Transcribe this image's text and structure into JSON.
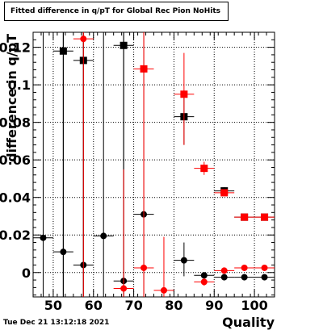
{
  "title": "Fitted difference in q/pT for Global Rec Pion NoHits",
  "timestamp": "Tue Dec 21 13:12:18 2021",
  "chart_data": {
    "type": "scatter",
    "title": "Fitted difference in q/pT for Global Rec Pion NoHits",
    "xlabel": "Quality",
    "ylabel": "difference in q/pT",
    "xlim": [
      45,
      105
    ],
    "ylim": [
      -0.013,
      0.128
    ],
    "x_ticks": [
      50,
      60,
      70,
      80,
      90,
      100
    ],
    "y_ticks": [
      0,
      0.02,
      0.04,
      0.06,
      0.08,
      0.1,
      0.12
    ],
    "y_tick_labels": [
      "0",
      "0.02",
      "0.04",
      "0.06",
      "0.08",
      "0.1",
      "0.12"
    ],
    "grid": true,
    "series": [
      {
        "marker": "square",
        "color": "#000000",
        "points": [
          {
            "x": 52.5,
            "y": 0.118,
            "xerr": 2.5,
            "ylo": -0.013,
            "yhi": 0.128
          },
          {
            "x": 57.5,
            "y": 0.113,
            "xerr": 2.5,
            "ylo": -0.013,
            "yhi": 0.128
          },
          {
            "x": 67.5,
            "y": 0.121,
            "xerr": 2.5,
            "ylo": -0.013,
            "yhi": 0.128
          },
          {
            "x": 82.5,
            "y": 0.083,
            "xerr": 2.5,
            "ylo": 0.068,
            "yhi": 0.094
          },
          {
            "x": 92.5,
            "y": 0.0435,
            "xerr": 2.5,
            "ylo": 0.0415,
            "yhi": 0.0455
          },
          {
            "x": 97.5,
            "y": 0.0295,
            "xerr": 2.5,
            "ylo": 0.0285,
            "yhi": 0.0305
          },
          {
            "x": 102.5,
            "y": 0.0295,
            "xerr": 2.5,
            "ylo": 0.029,
            "yhi": 0.03
          }
        ]
      },
      {
        "marker": "square",
        "color": "#ff0000",
        "points": [
          {
            "x": 72.5,
            "y": 0.1085,
            "xerr": 2.5,
            "ylo": -0.013,
            "yhi": 0.128
          },
          {
            "x": 82.5,
            "y": 0.095,
            "xerr": 2.5,
            "ylo": 0.068,
            "yhi": 0.117
          },
          {
            "x": 87.5,
            "y": 0.0555,
            "xerr": 2.5,
            "ylo": 0.052,
            "yhi": 0.059
          },
          {
            "x": 92.5,
            "y": 0.0425,
            "xerr": 2.5,
            "ylo": 0.041,
            "yhi": 0.044
          },
          {
            "x": 97.5,
            "y": 0.0295,
            "xerr": 2.5,
            "ylo": 0.0285,
            "yhi": 0.0305
          },
          {
            "x": 102.5,
            "y": 0.0295,
            "xerr": 2.5,
            "ylo": 0.029,
            "yhi": 0.03
          }
        ]
      },
      {
        "marker": "circle",
        "color": "#000000",
        "points": [
          {
            "x": 47.5,
            "y": 0.0185,
            "xerr": 2.5,
            "ylo": -0.013,
            "yhi": 0.128
          },
          {
            "x": 52.5,
            "y": 0.011,
            "xerr": 2.5,
            "ylo": -0.013,
            "yhi": 0.128
          },
          {
            "x": 57.5,
            "y": 0.004,
            "xerr": 2.5,
            "ylo": -0.013,
            "yhi": 0.128
          },
          {
            "x": 62.5,
            "y": 0.0195,
            "xerr": 2.5,
            "ylo": -0.013,
            "yhi": 0.128
          },
          {
            "x": 67.5,
            "y": -0.0045,
            "xerr": 2.5,
            "ylo": -0.013,
            "yhi": 0.128
          },
          {
            "x": 72.5,
            "y": 0.031,
            "xerr": 2.5,
            "ylo": -0.013,
            "yhi": 0.128
          },
          {
            "x": 82.5,
            "y": 0.0065,
            "xerr": 2.5,
            "ylo": -0.002,
            "yhi": 0.016
          },
          {
            "x": 87.5,
            "y": -0.0015,
            "xerr": 2.5,
            "ylo": -0.003,
            "yhi": 0.0
          },
          {
            "x": 92.5,
            "y": -0.0025,
            "xerr": 2.5,
            "ylo": -0.003,
            "yhi": -0.002
          },
          {
            "x": 97.5,
            "y": -0.0025,
            "xerr": 2.5,
            "ylo": -0.003,
            "yhi": -0.002
          },
          {
            "x": 102.5,
            "y": -0.0025,
            "xerr": 2.5,
            "ylo": -0.003,
            "yhi": -0.002
          }
        ]
      },
      {
        "marker": "circle",
        "color": "#ff0000",
        "points": [
          {
            "x": 57.5,
            "y": 0.1245,
            "xerr": 2.5,
            "ylo": -0.013,
            "yhi": 0.128
          },
          {
            "x": 67.5,
            "y": -0.0085,
            "xerr": 2.5,
            "ylo": -0.013,
            "yhi": 0.055
          },
          {
            "x": 72.5,
            "y": 0.0025,
            "xerr": 2.5,
            "ylo": -0.013,
            "yhi": 0.128
          },
          {
            "x": 77.5,
            "y": -0.0095,
            "xerr": 2.5,
            "ylo": -0.013,
            "yhi": 0.019
          },
          {
            "x": 87.5,
            "y": -0.005,
            "xerr": 2.5,
            "ylo": -0.007,
            "yhi": -0.003
          },
          {
            "x": 92.5,
            "y": 0.001,
            "xerr": 2.5,
            "ylo": 0.0,
            "yhi": 0.002
          },
          {
            "x": 97.5,
            "y": 0.0025,
            "xerr": 2.5,
            "ylo": 0.0015,
            "yhi": 0.0035
          },
          {
            "x": 102.5,
            "y": 0.0025,
            "xerr": 2.5,
            "ylo": 0.002,
            "yhi": 0.003
          }
        ]
      }
    ]
  }
}
